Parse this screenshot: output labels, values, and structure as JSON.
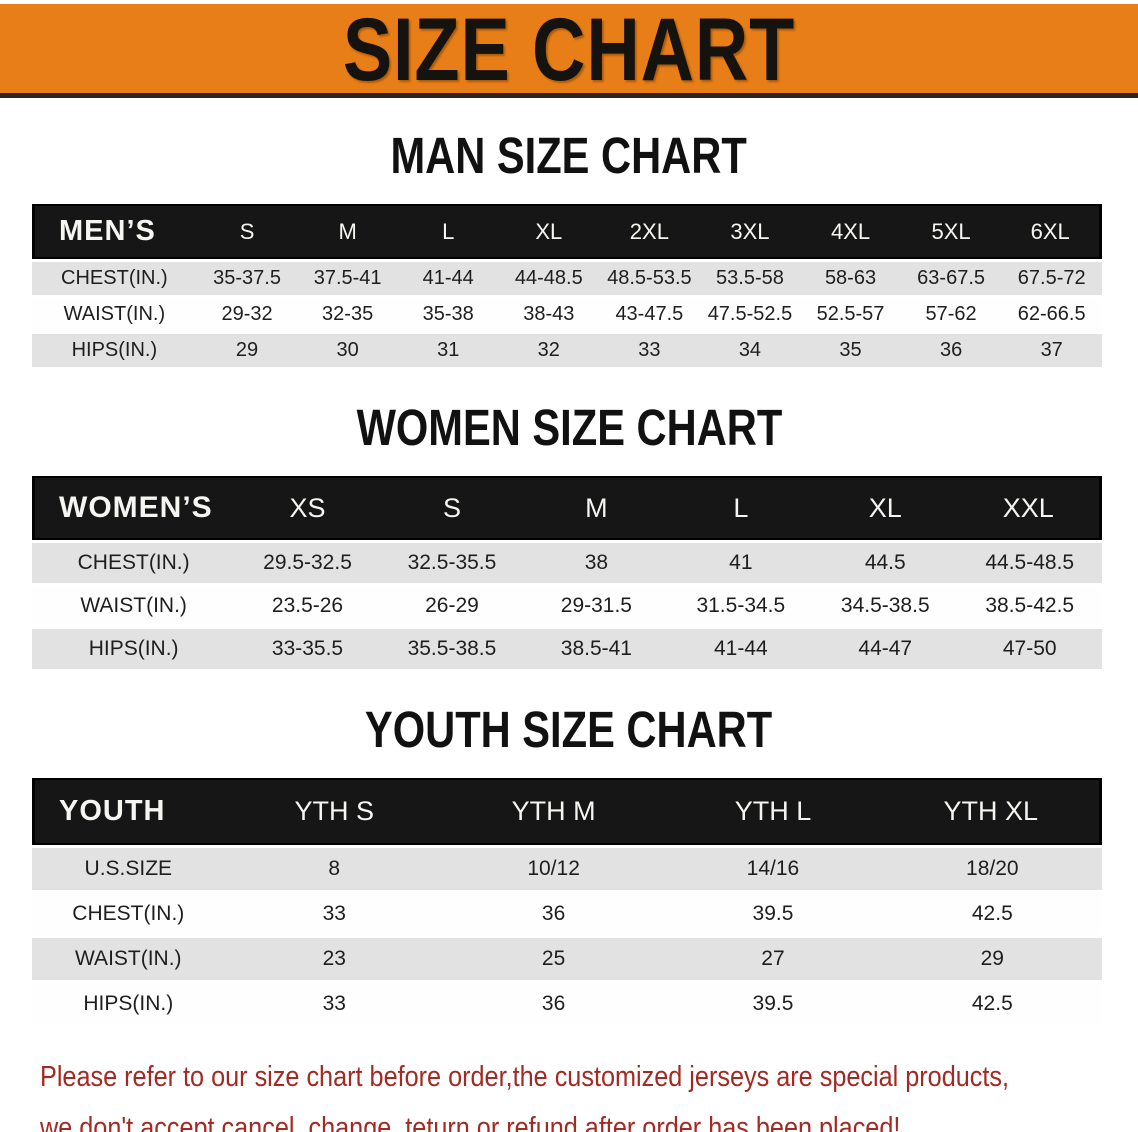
{
  "theme": {
    "banner-bg": "#e87e17",
    "banner-fg": "#151310",
    "header-bg": "#161616",
    "stripe": "#e2e2e2",
    "notice-fg": "#a32a22"
  },
  "banner": {
    "title": "SIZE CHART"
  },
  "sections": [
    {
      "heading": "MAN SIZE CHART",
      "label": "MEN’S",
      "columns": [
        "S",
        "M",
        "L",
        "XL",
        "2XL",
        "3XL",
        "4XL",
        "5XL",
        "6XL"
      ],
      "rows": [
        {
          "label": "CHEST(IN.)",
          "values": [
            "35-37.5",
            "37.5-41",
            "41-44",
            "44-48.5",
            "48.5-53.5",
            "53.5-58",
            "58-63",
            "63-67.5",
            "67.5-72"
          ]
        },
        {
          "label": "WAIST(IN.)",
          "values": [
            "29-32",
            "32-35",
            "35-38",
            "38-43",
            "43-47.5",
            "47.5-52.5",
            "52.5-57",
            "57-62",
            "62-66.5"
          ]
        },
        {
          "label": "HIPS(IN.)",
          "values": [
            "29",
            "30",
            "31",
            "32",
            "33",
            "34",
            "35",
            "36",
            "37"
          ]
        }
      ]
    },
    {
      "heading": "WOMEN SIZE CHART",
      "label": "WOMEN’S",
      "columns": [
        "XS",
        "S",
        "M",
        "L",
        "XL",
        "XXL"
      ],
      "rows": [
        {
          "label": "CHEST(IN.)",
          "values": [
            "29.5-32.5",
            "32.5-35.5",
            "38",
            "41",
            "44.5",
            "44.5-48.5"
          ]
        },
        {
          "label": "WAIST(IN.)",
          "values": [
            "23.5-26",
            "26-29",
            "29-31.5",
            "31.5-34.5",
            "34.5-38.5",
            "38.5-42.5"
          ]
        },
        {
          "label": "HIPS(IN.)",
          "values": [
            "33-35.5",
            "35.5-38.5",
            "38.5-41",
            "41-44",
            "44-47",
            "47-50"
          ]
        }
      ]
    },
    {
      "heading": "YOUTH SIZE CHART",
      "label": "YOUTH",
      "columns": [
        "YTH S",
        "YTH M",
        "YTH L",
        "YTH XL"
      ],
      "rows": [
        {
          "label": "U.S.SIZE",
          "values": [
            "8",
            "10/12",
            "14/16",
            "18/20"
          ]
        },
        {
          "label": "CHEST(IN.)",
          "values": [
            "33",
            "36",
            "39.5",
            "42.5"
          ]
        },
        {
          "label": "WAIST(IN.)",
          "values": [
            "23",
            "25",
            "27",
            "29"
          ]
        },
        {
          "label": "HIPS(IN.)",
          "values": [
            "33",
            "36",
            "39.5",
            "42.5"
          ]
        }
      ]
    }
  ],
  "notice": {
    "line1": "Please refer to our size chart before order,the customized jerseys are special products,",
    "line2": "we don't accept cancel, change, teturn or refund after order has been placed!"
  }
}
